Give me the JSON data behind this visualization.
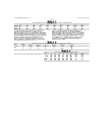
{
  "background_color": "#ffffff",
  "text_color": "#1a1a1a",
  "line_color": "#333333",
  "header_left": "US 2008/0187974 A1",
  "header_right": "Aug. 26, 2010",
  "page_num": "11"
}
